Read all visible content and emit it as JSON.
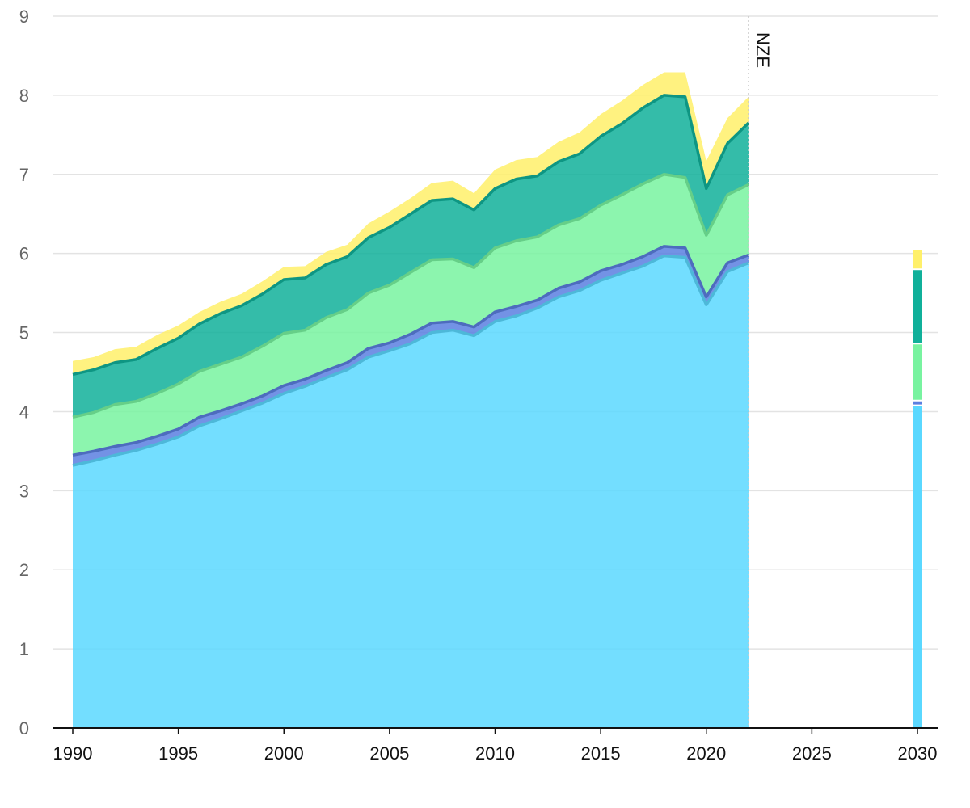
{
  "chart_data": {
    "type": "area",
    "title": "",
    "xlabel": "",
    "ylabel": "",
    "ylim": [
      0,
      9
    ],
    "xlim": [
      1990,
      2030
    ],
    "grid": true,
    "stacked": true,
    "y_ticks": [
      "0",
      "1",
      "2",
      "3",
      "4",
      "5",
      "6",
      "7",
      "8",
      "9"
    ],
    "x_ticks": [
      "1990",
      "1995",
      "2000",
      "2005",
      "2010",
      "2015",
      "2020",
      "2025",
      "2030"
    ],
    "marker": {
      "x": 2022,
      "label": "NZE"
    },
    "x": [
      1990,
      1991,
      1992,
      1993,
      1994,
      1995,
      1996,
      1997,
      1998,
      1999,
      2000,
      2001,
      2002,
      2003,
      2004,
      2005,
      2006,
      2007,
      2008,
      2009,
      2010,
      2011,
      2012,
      2013,
      2014,
      2015,
      2016,
      2017,
      2018,
      2019,
      2020,
      2021,
      2022
    ],
    "series": [
      {
        "color": "#5ad8ff",
        "values": [
          3.32,
          3.38,
          3.45,
          3.51,
          3.59,
          3.68,
          3.82,
          3.91,
          4.01,
          4.11,
          4.23,
          4.32,
          4.43,
          4.53,
          4.69,
          4.77,
          4.86,
          5.0,
          5.03,
          4.96,
          5.14,
          5.21,
          5.31,
          5.45,
          5.53,
          5.66,
          5.75,
          5.84,
          5.97,
          5.95,
          5.35,
          5.77,
          5.88
        ]
      },
      {
        "color": "#5b7fe0",
        "values": [
          0.13,
          0.12,
          0.11,
          0.1,
          0.1,
          0.1,
          0.11,
          0.1,
          0.09,
          0.09,
          0.1,
          0.09,
          0.09,
          0.09,
          0.11,
          0.1,
          0.12,
          0.12,
          0.11,
          0.11,
          0.12,
          0.12,
          0.1,
          0.11,
          0.11,
          0.12,
          0.11,
          0.12,
          0.12,
          0.12,
          0.1,
          0.11,
          0.1
        ]
      },
      {
        "color": "#78f3a0",
        "values": [
          0.48,
          0.49,
          0.53,
          0.52,
          0.54,
          0.57,
          0.58,
          0.59,
          0.59,
          0.63,
          0.66,
          0.62,
          0.67,
          0.67,
          0.7,
          0.73,
          0.78,
          0.8,
          0.79,
          0.75,
          0.81,
          0.83,
          0.8,
          0.8,
          0.8,
          0.83,
          0.88,
          0.92,
          0.91,
          0.89,
          0.78,
          0.86,
          0.89
        ]
      },
      {
        "color": "#10b09a",
        "values": [
          0.54,
          0.54,
          0.53,
          0.53,
          0.57,
          0.58,
          0.6,
          0.64,
          0.65,
          0.66,
          0.68,
          0.66,
          0.67,
          0.67,
          0.7,
          0.73,
          0.74,
          0.75,
          0.76,
          0.73,
          0.75,
          0.78,
          0.77,
          0.8,
          0.82,
          0.87,
          0.9,
          0.96,
          1.0,
          1.02,
          0.59,
          0.65,
          0.78
        ]
      },
      {
        "color": "#fff06a",
        "values": [
          0.17,
          0.16,
          0.17,
          0.16,
          0.17,
          0.16,
          0.15,
          0.15,
          0.15,
          0.16,
          0.16,
          0.15,
          0.16,
          0.15,
          0.18,
          0.2,
          0.2,
          0.22,
          0.23,
          0.21,
          0.24,
          0.24,
          0.24,
          0.25,
          0.27,
          0.28,
          0.29,
          0.29,
          0.29,
          0.31,
          0.35,
          0.32,
          0.33
        ]
      }
    ],
    "bar_2030": {
      "x": 2030,
      "values": [
        4.08,
        0.06,
        0.72,
        0.94,
        0.25
      ]
    }
  }
}
